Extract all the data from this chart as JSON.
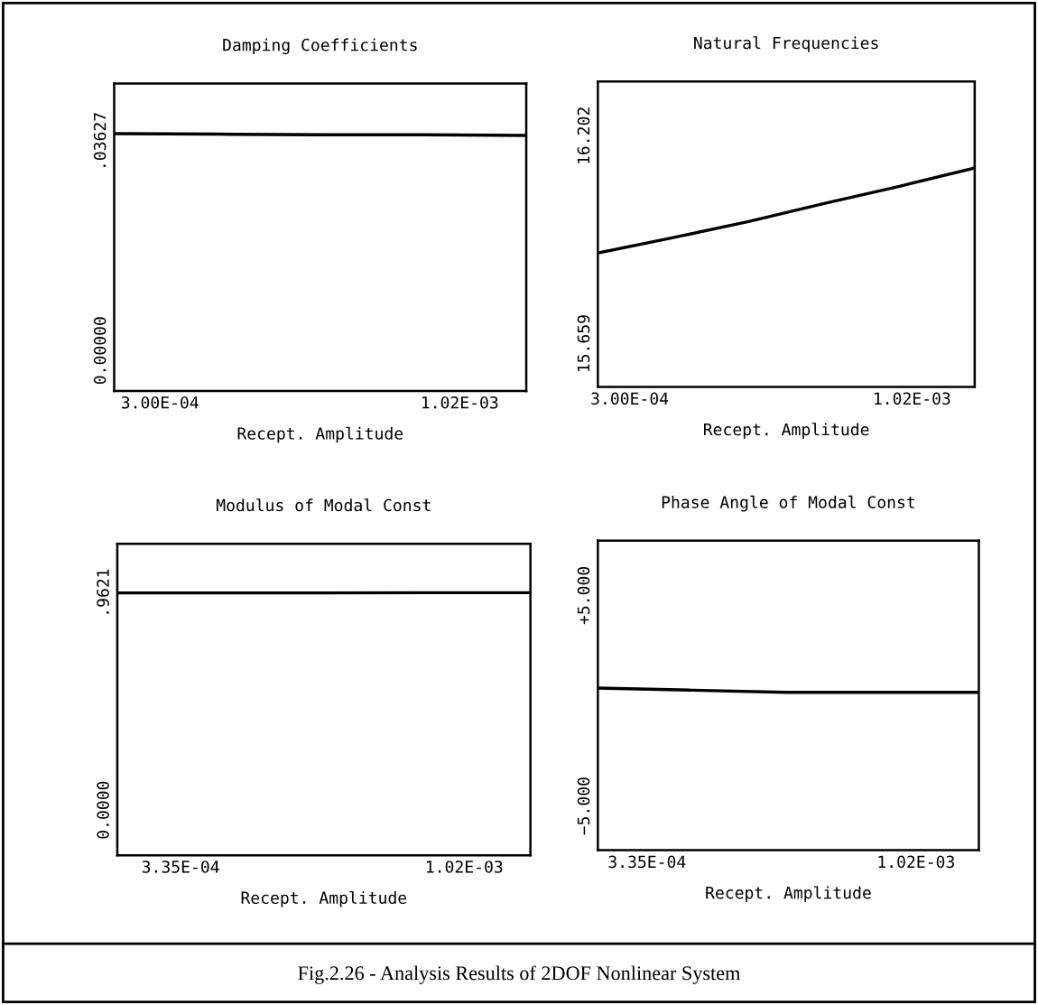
{
  "chart_data": [
    {
      "type": "line",
      "title": "Damping Coefficients",
      "xlabel": "Recept. Amplitude",
      "x": [
        0.00019,
        0.00044,
        0.00069,
        0.00093,
        0.00118
      ],
      "series": [
        {
          "color": "#000000",
          "values": [
            0.0376,
            0.0375,
            0.0374,
            0.0374,
            0.0373
          ]
        }
      ],
      "xlim": [
        0.00019,
        0.00118
      ],
      "xticks": [
        {
          "value": 0.0003,
          "label": "3.00E-04"
        },
        {
          "value": 0.00102,
          "label": "1.02E-03"
        }
      ],
      "ylim": [
        -0.007,
        0.0463
      ],
      "yticks": [
        {
          "value": 0,
          "label": "0.00000"
        },
        {
          "value": 0.03627,
          "label": ".03627"
        }
      ],
      "grid": false,
      "legend": false,
      "line_style": "solid"
    },
    {
      "type": "line",
      "title": "Natural Frequencies",
      "xlabel": "Recept. Amplitude",
      "x": [
        0.000219,
        0.000411,
        0.000603,
        0.000796,
        0.000988,
        0.00118
      ],
      "series": [
        {
          "color": "#000000",
          "values": [
            15.896,
            15.936,
            15.978,
            16.025,
            16.07,
            16.118
          ]
        }
      ],
      "xlim": [
        0.000219,
        0.00118
      ],
      "xticks": [
        {
          "value": 0.0003,
          "label": "3.00E-04"
        },
        {
          "value": 0.00102,
          "label": "1.02E-03"
        }
      ],
      "ylim": [
        15.546,
        16.344
      ],
      "yticks": [
        {
          "value": 15.659,
          "label": "15.659"
        },
        {
          "value": 16.202,
          "label": "16.202"
        }
      ],
      "grid": false,
      "legend": false,
      "line_style": "solid"
    },
    {
      "type": "line",
      "title": "Modulus of Modal Const",
      "xlabel": "Recept. Amplitude",
      "x": [
        0.000182,
        0.000432,
        0.000683,
        0.000934,
        0.00118
      ],
      "series": [
        {
          "color": "#000000",
          "values": [
            0.962,
            0.962,
            0.962,
            0.963,
            0.963
          ]
        }
      ],
      "xlim": [
        0.000182,
        0.00118
      ],
      "xticks": [
        {
          "value": 0.000335,
          "label": "3.35E-04"
        },
        {
          "value": 0.00102,
          "label": "1.02E-03"
        }
      ],
      "ylim": [
        -0.2,
        1.18
      ],
      "yticks": [
        {
          "value": 0,
          "label": "0.0000"
        },
        {
          "value": 0.9621,
          "label": ".9621"
        }
      ],
      "grid": false,
      "legend": false,
      "line_style": "solid"
    },
    {
      "type": "line",
      "title": "Phase Angle of Modal Const",
      "xlabel": "Recept. Amplitude",
      "x": [
        0.00021,
        0.00045,
        0.00069,
        0.00093,
        0.00118
      ],
      "series": [
        {
          "color": "#000000",
          "values": [
            0.6,
            0.5,
            0.4,
            0.4,
            0.4
          ]
        }
      ],
      "xlim": [
        0.00021,
        0.00118
      ],
      "xticks": [
        {
          "value": 0.000335,
          "label": "3.35E-04"
        },
        {
          "value": 0.00102,
          "label": "1.02E-03"
        }
      ],
      "ylim": [
        -7.1,
        7.6
      ],
      "yticks": [
        {
          "value": -5,
          "label": "−5.000"
        },
        {
          "value": 5,
          "label": "+5.000"
        }
      ],
      "grid": false,
      "legend": false,
      "line_style": "solid",
      "annotations": [
        "Fig.2.26 - Analysis Results of 2DOF Nonlinear System"
      ]
    }
  ]
}
